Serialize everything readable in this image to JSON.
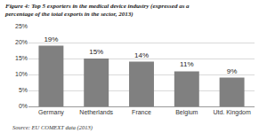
{
  "chart_data": {
    "type": "bar",
    "title": "Figure 4: Top 5 exporters in the medical device industry (expressed as a percentage of the total exports in the sector, 2013)",
    "source": "Source: EU COMEXT data (2013)",
    "categories": [
      "Germany",
      "Netherlands",
      "France",
      "Belgium",
      "Utd. Kingdom"
    ],
    "values": [
      19,
      15,
      14,
      11,
      9
    ],
    "value_labels": [
      "19%",
      "15%",
      "14%",
      "11%",
      "9%"
    ],
    "data_labels": true,
    "color": "#808080",
    "ylim": [
      0,
      25
    ],
    "yticks": [
      {
        "value": 0,
        "label": "0%"
      },
      {
        "value": 5,
        "label": "5%"
      },
      {
        "value": 10,
        "label": "10%"
      },
      {
        "value": 15,
        "label": "15%"
      },
      {
        "value": 20,
        "label": "20%"
      },
      {
        "value": 25,
        "label": "25%"
      }
    ],
    "grid": true
  }
}
